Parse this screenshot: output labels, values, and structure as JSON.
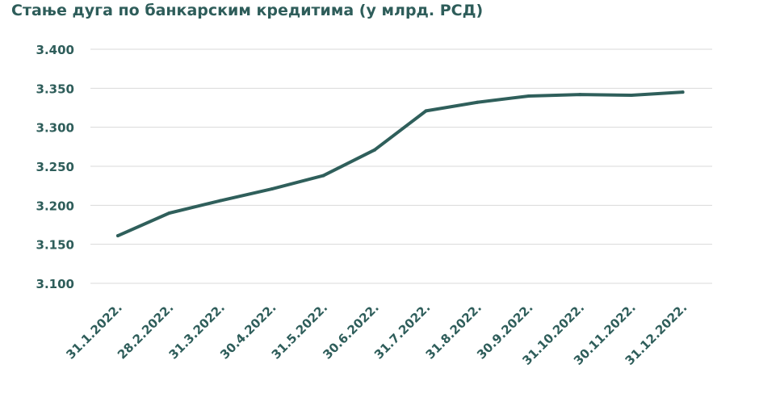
{
  "chart_data": {
    "type": "line",
    "title": "Стање дуга по банкарским кредитима (у млрд. РСД)",
    "xlabel": "",
    "ylabel": "",
    "categories": [
      "31.1.2022.",
      "28.2.2022.",
      "31.3.2022.",
      "30.4.2022.",
      "31.5.2022.",
      "30.6.2022.",
      "31.7.2022.",
      "31.8.2022.",
      "30.9.2022.",
      "31.10.2022.",
      "30.11.2022.",
      "31.12.2022."
    ],
    "series": [
      {
        "values": [
          3161,
          3190,
          3206,
          3221,
          3238,
          3271,
          3321,
          3332,
          3340,
          3342,
          3341,
          3345
        ]
      }
    ],
    "ylim": [
      3100,
      3400
    ],
    "yticks": [
      3100,
      3150,
      3200,
      3250,
      3300,
      3350,
      3400
    ],
    "ytick_labels": [
      "3.100",
      "3.150",
      "3.200",
      "3.250",
      "3.300",
      "3.350",
      "3.400"
    ],
    "grid": true,
    "legend": "none",
    "colors": {
      "line": "#2f5f5b",
      "text": "#2e5d5a",
      "grid": "#d9d9d9"
    }
  }
}
